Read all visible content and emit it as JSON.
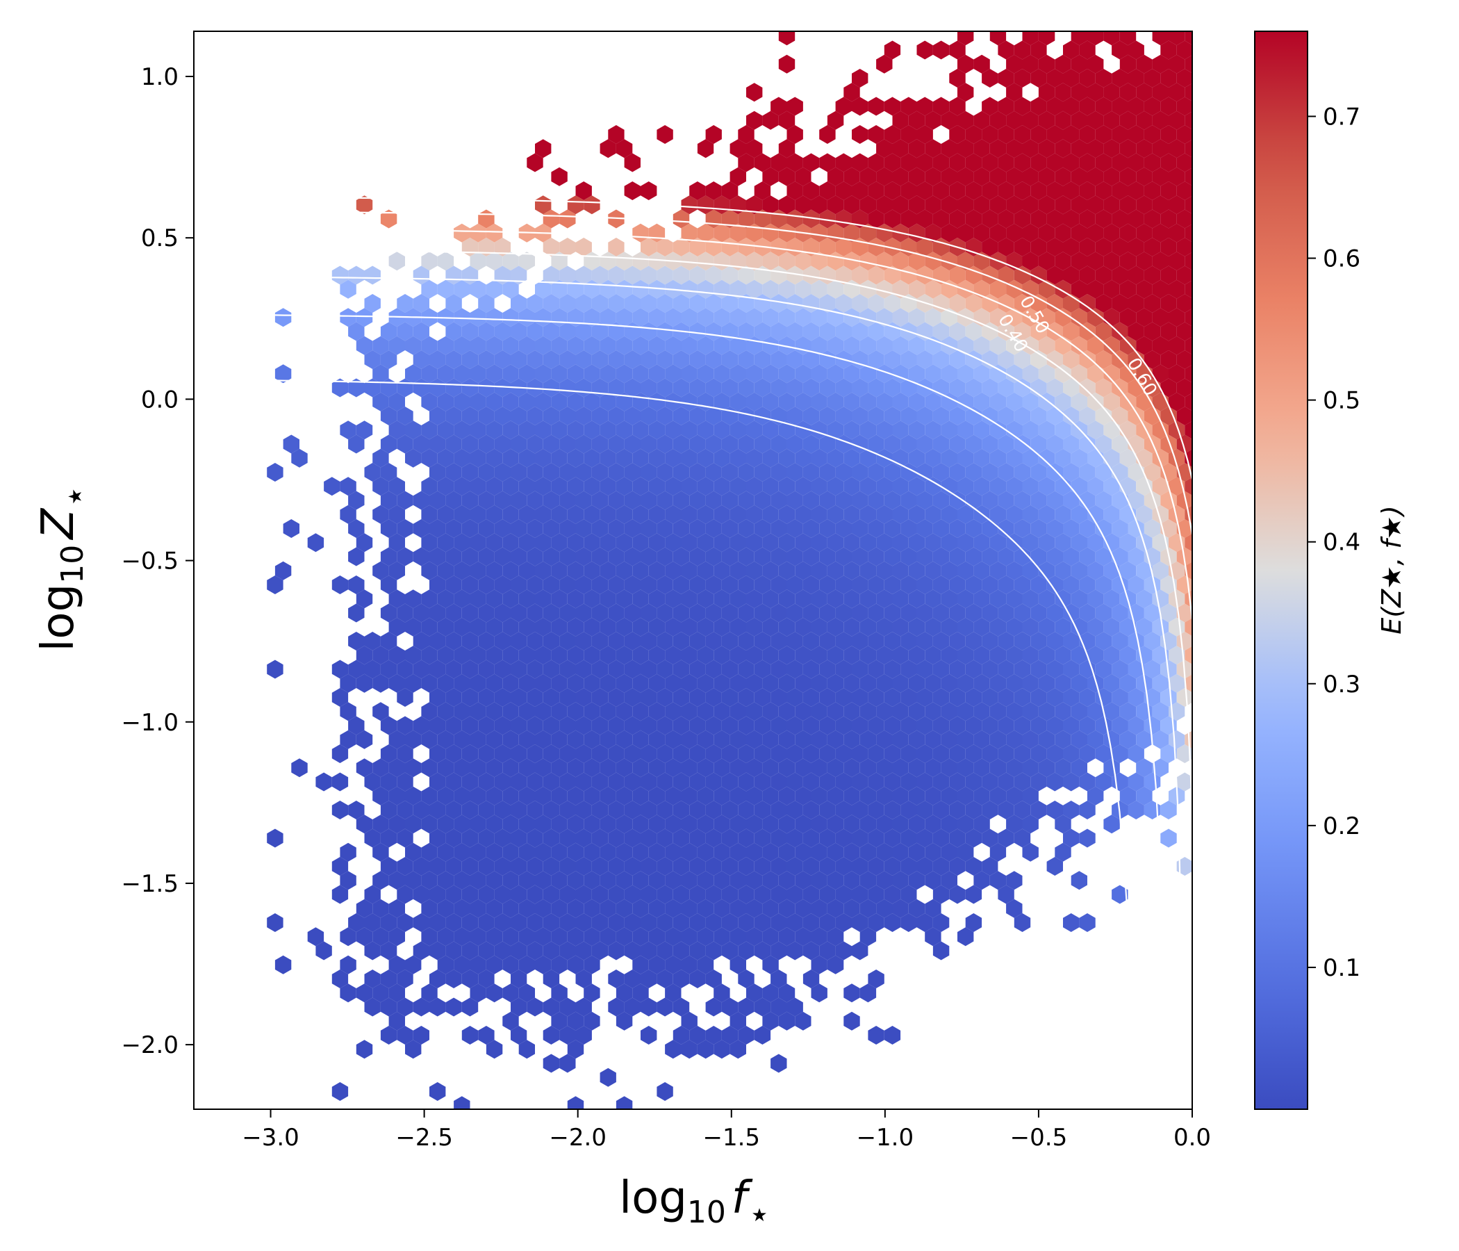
{
  "chart_data": {
    "type": "hexbin",
    "x_axis": {
      "label": "log",
      "label_sub": "10",
      "label_var": "f",
      "label_star": "★",
      "range": [
        -3.25,
        0.0
      ],
      "ticks": [
        -3.0,
        -2.5,
        -2.0,
        -1.5,
        -1.0,
        -0.5,
        0.0
      ],
      "tick_labels": [
        "−3.0",
        "−2.5",
        "−2.0",
        "−1.5",
        "−1.0",
        "−0.5",
        "0.0"
      ]
    },
    "y_axis": {
      "label": "log",
      "label_sub": "10",
      "label_var": "Z",
      "label_star": "★",
      "range": [
        -2.2,
        1.14
      ],
      "ticks": [
        1.0,
        0.5,
        0.0,
        -0.5,
        -1.0,
        -1.5,
        -2.0
      ],
      "tick_labels": [
        "1.0",
        "0.5",
        "0.0",
        "−0.5",
        "−1.0",
        "−1.5",
        "−2.0"
      ]
    },
    "colorbar": {
      "label": "E(Z★, f★)",
      "colormap": "coolwarm",
      "range": [
        0.0,
        0.76
      ],
      "ticks": [
        0.1,
        0.2,
        0.3,
        0.4,
        0.5,
        0.6,
        0.7
      ],
      "tick_labels": [
        "0.1",
        "0.2",
        "0.3",
        "0.4",
        "0.5",
        "0.6",
        "0.7"
      ]
    },
    "contours": {
      "levels": [
        0.1,
        0.2,
        0.3,
        0.4,
        0.5,
        0.6,
        0.7
      ],
      "visible_labels": [
        "0.40",
        "0.50",
        "0.60"
      ],
      "color": "#ffffff"
    },
    "grid": false,
    "description_model": "E increases with both log10 f and log10 Z; density of samples concentrated around log10 f in [-2.6, 0], log10 Z in [-2.0, 1.0]"
  }
}
